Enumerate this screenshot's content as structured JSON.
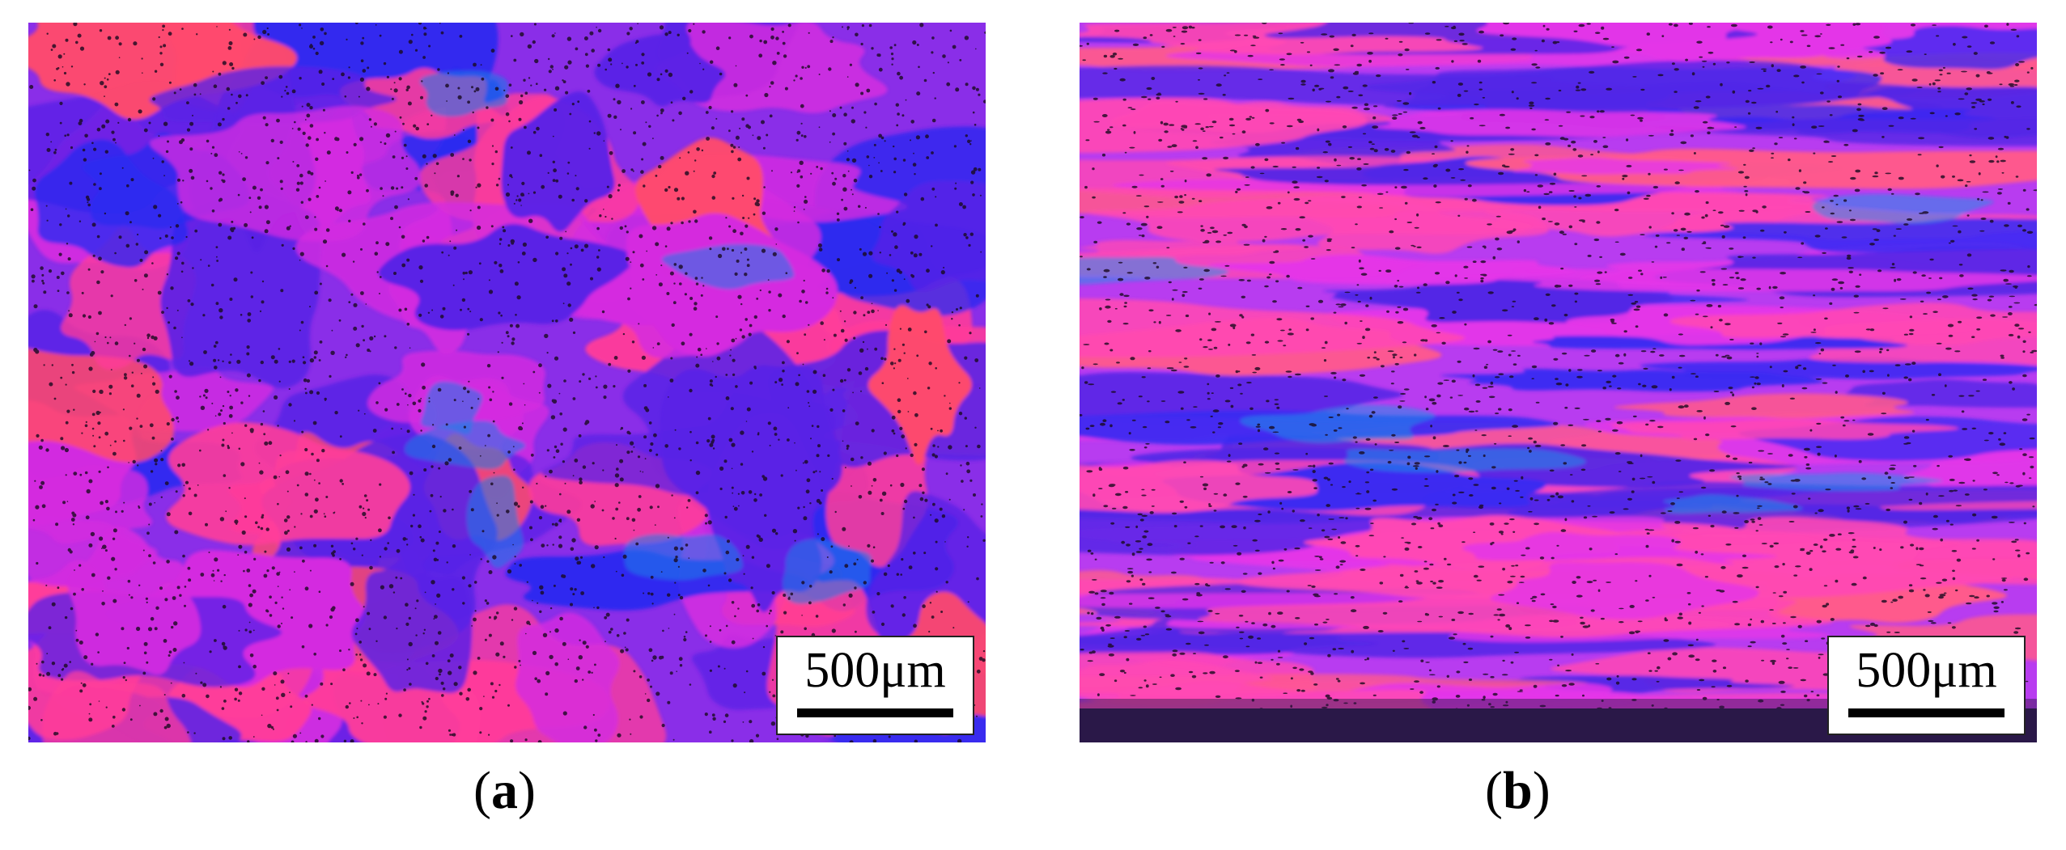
{
  "panels": [
    {
      "id": "a",
      "caption_open": "(",
      "caption_letter": "a",
      "caption_close": ")",
      "scale_label": "500μm",
      "texture": "equiaxed-patches",
      "colors": {
        "base": "#8a2ee8",
        "blue": "#5a22e6",
        "deep": "#2a2af0",
        "pink": "#ff3c9a",
        "orange": "#ff4a6c",
        "magenta": "#d42ce0",
        "cyan": "#1a7fe8",
        "dots": "#1a0a20"
      }
    },
    {
      "id": "b",
      "caption_open": "(",
      "caption_letter": "b",
      "caption_close": ")",
      "scale_label": "500μm",
      "texture": "elongated-bands",
      "colors": {
        "base": "#b83cf0",
        "blue": "#5226e6",
        "deep": "#3a2af2",
        "pink": "#ff48b4",
        "orange": "#ff5a8c",
        "magenta": "#e436e8",
        "cyan": "#1a9ae8",
        "dots": "#1a0a20",
        "bottom_edge": "#2a1848"
      }
    }
  ]
}
